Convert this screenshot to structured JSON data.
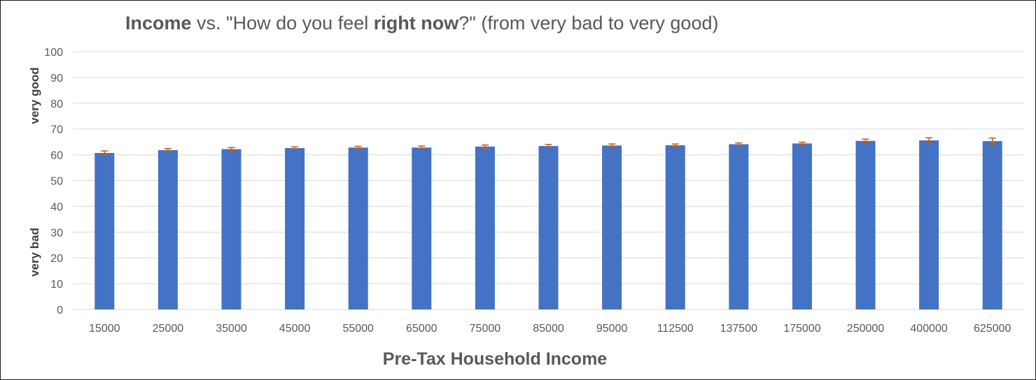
{
  "chart_data": {
    "type": "bar",
    "title": {
      "parts": [
        {
          "text": "Income",
          "bold": true
        },
        {
          "text": " vs. \"How do you feel ",
          "bold": false
        },
        {
          "text": "right now",
          "bold": true
        },
        {
          "text": "?\" (from very bad to very good)",
          "bold": false
        }
      ]
    },
    "xlabel": "Pre-Tax Household Income",
    "ylabel": "",
    "y_annotations": {
      "top": "very good",
      "bottom": "very bad"
    },
    "ylim": [
      0,
      100
    ],
    "yticks": [
      0,
      10,
      20,
      30,
      40,
      50,
      60,
      70,
      80,
      90,
      100
    ],
    "grid": true,
    "categories": [
      "15000",
      "25000",
      "35000",
      "45000",
      "55000",
      "65000",
      "75000",
      "85000",
      "95000",
      "112500",
      "137500",
      "175000",
      "250000",
      "400000",
      "625000"
    ],
    "values": [
      60.7,
      61.8,
      62.2,
      62.6,
      62.8,
      62.8,
      63.2,
      63.4,
      63.6,
      63.7,
      64.1,
      64.4,
      65.4,
      65.6,
      65.3
    ],
    "error_bars": [
      0.8,
      0.6,
      0.6,
      0.5,
      0.5,
      0.6,
      0.6,
      0.6,
      0.6,
      0.5,
      0.5,
      0.5,
      0.7,
      1.0,
      1.2
    ],
    "colors": {
      "bar": "#4472C4",
      "error": "#C55A11",
      "grid": "#D9D9D9",
      "text": "#595959"
    }
  }
}
